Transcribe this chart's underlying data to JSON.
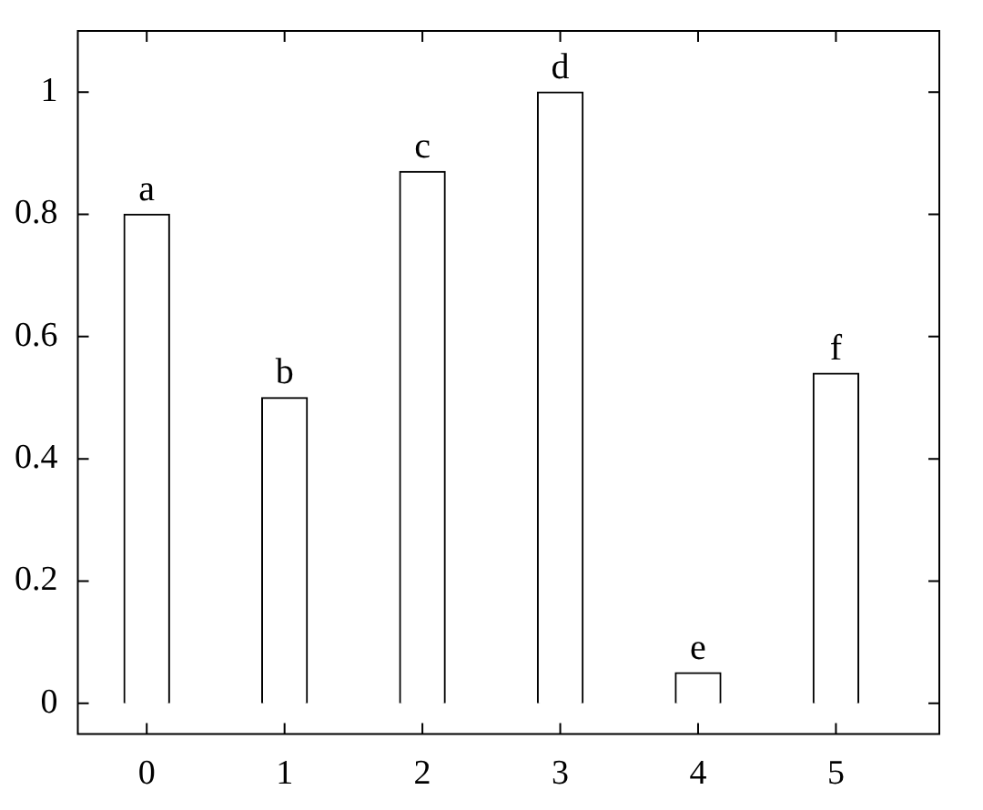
{
  "chart_data": {
    "type": "bar",
    "x": [
      0,
      1,
      2,
      3,
      4,
      5
    ],
    "values": [
      0.8,
      0.5,
      0.87,
      1,
      0.05,
      0.54
    ],
    "color": "#ffffff",
    "xlim": [
      -0.5,
      5.75
    ],
    "xticks": [
      0,
      1,
      2,
      3,
      4,
      5
    ],
    "ylim": [
      -0.05,
      1.1
    ],
    "yticks": [
      0,
      0.2,
      0.4,
      0.6,
      0.8,
      1
    ],
    "grid": false,
    "legend": false,
    "annotations": [
      {
        "text": "a",
        "x": 0,
        "y": 0.8
      },
      {
        "text": "b",
        "x": 1,
        "y": 0.5
      },
      {
        "text": "c",
        "x": 2,
        "y": 0.87
      },
      {
        "text": "d",
        "x": 3,
        "y": 1
      },
      {
        "text": "e",
        "x": 4,
        "y": 0.05
      },
      {
        "text": "f",
        "x": 5,
        "y": 0.54
      }
    ]
  }
}
